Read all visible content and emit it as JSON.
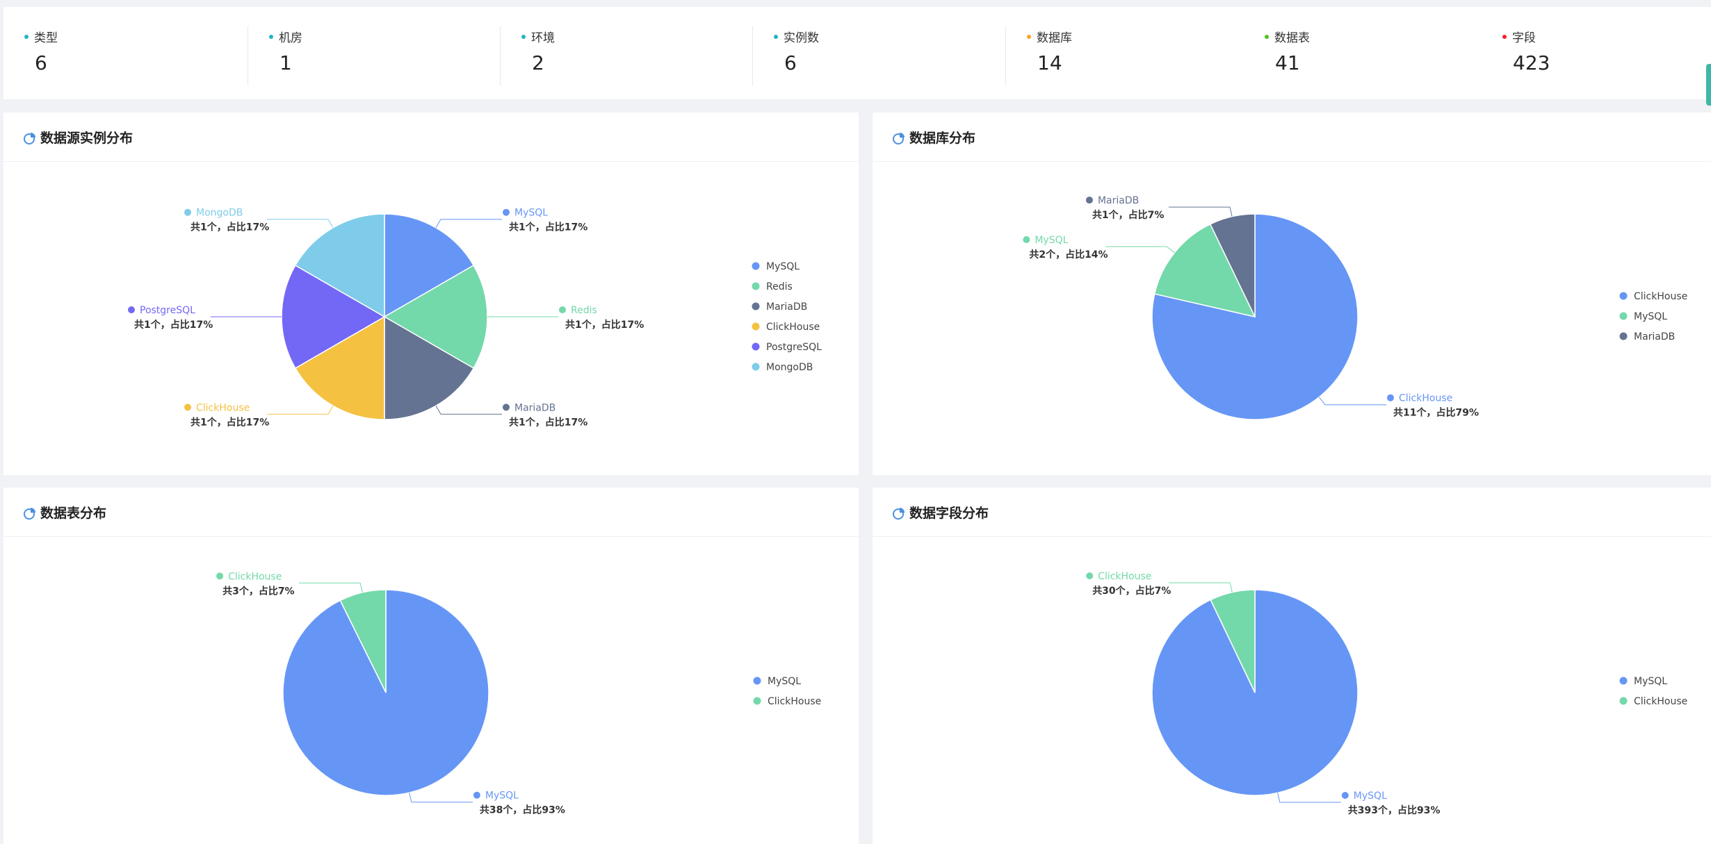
{
  "stats": [
    {
      "label": "类型",
      "value": "6",
      "color": "#1fb5c4"
    },
    {
      "label": "机房",
      "value": "1",
      "color": "#1fb5c4"
    },
    {
      "label": "环境",
      "value": "2",
      "color": "#1fb5c4"
    },
    {
      "label": "实例数",
      "value": "6",
      "color": "#1fb5c4"
    },
    {
      "label": "数据库",
      "value": "14",
      "color": "#f5a623"
    },
    {
      "label": "数据表",
      "value": "41",
      "color": "#52c41a"
    },
    {
      "label": "字段",
      "value": "423",
      "color": "#f5222d"
    }
  ],
  "colors": {
    "MySQL": "#6696f5",
    "Redis": "#73d8aa",
    "MariaDB": "#647391",
    "ClickHouse": "#f4c141",
    "PostgreSQL": "#7368f5",
    "MongoDB": "#7ecbea"
  },
  "chart_data": [
    {
      "type": "pie",
      "title": "数据源实例分布",
      "categories": [
        "MySQL",
        "Redis",
        "MariaDB",
        "ClickHouse",
        "PostgreSQL",
        "MongoDB"
      ],
      "values": [
        1,
        1,
        1,
        1,
        1,
        1
      ],
      "percents": [
        17,
        17,
        17,
        17,
        17,
        17
      ],
      "slice_labels": [
        "共1个，占比17%",
        "共1个，占比17%",
        "共1个，占比17%",
        "共1个，占比17%",
        "共1个，占比17%",
        "共1个，占比17%"
      ],
      "legend": "right"
    },
    {
      "type": "pie",
      "title": "数据库分布",
      "categories": [
        "ClickHouse",
        "MySQL",
        "MariaDB"
      ],
      "values": [
        11,
        2,
        1
      ],
      "percents": [
        79,
        14,
        7
      ],
      "slice_labels": [
        "共11个，占比79%",
        "共2个，占比14%",
        "共1个，占比7%"
      ],
      "slice_colors": [
        "#6696f5",
        "#73d8aa",
        "#647391"
      ],
      "legend": "right"
    },
    {
      "type": "pie",
      "title": "数据表分布",
      "categories": [
        "MySQL",
        "ClickHouse"
      ],
      "values": [
        38,
        3
      ],
      "percents": [
        93,
        7
      ],
      "slice_labels": [
        "共38个，占比93%",
        "共3个，占比7%"
      ],
      "slice_colors": [
        "#6696f5",
        "#73d8aa"
      ],
      "legend": "right"
    },
    {
      "type": "pie",
      "title": "数据字段分布",
      "categories": [
        "MySQL",
        "ClickHouse"
      ],
      "values": [
        393,
        30
      ],
      "percents": [
        93,
        7
      ],
      "slice_labels": [
        "共393个，占比93%",
        "共30个，占比7%"
      ],
      "slice_colors": [
        "#6696f5",
        "#73d8aa"
      ],
      "legend": "right"
    }
  ]
}
